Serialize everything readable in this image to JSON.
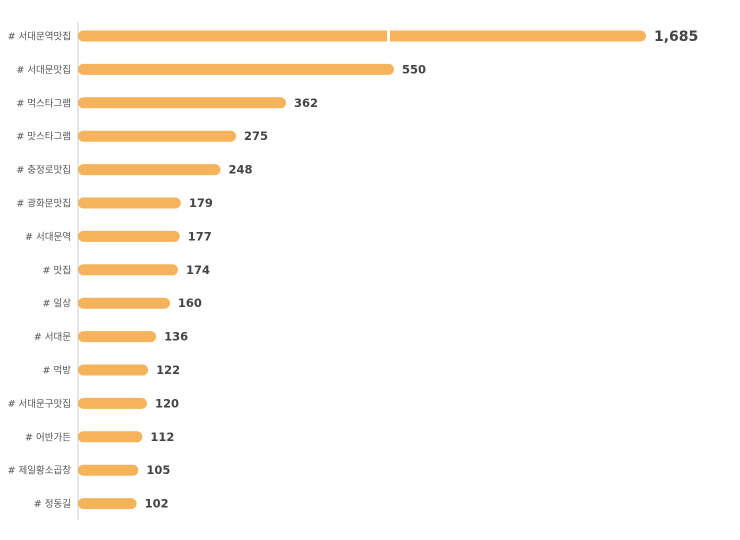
{
  "chart_data": {
    "type": "bar",
    "orientation": "horizontal",
    "title": "",
    "xlabel": "",
    "ylabel": "",
    "bar_color": "#F5B35C",
    "axis_break": true,
    "categories": [
      "# 서대문역맛집",
      "# 서대문맛집",
      "# 먹스타그램",
      "# 맛스타그램",
      "# 충정로맛집",
      "# 광화문맛집",
      "# 서대문역",
      "# 맛집",
      "# 일상",
      "# 서대문",
      "# 먹방",
      "# 서대문구맛집",
      "# 어반가든",
      "# 제일황소곱창",
      "# 정동길"
    ],
    "values": [
      1685,
      550,
      362,
      275,
      248,
      179,
      177,
      174,
      160,
      136,
      122,
      120,
      112,
      105,
      102
    ],
    "value_labels": [
      "1,685",
      "550",
      "362",
      "275",
      "248",
      "179",
      "177",
      "174",
      "160",
      "136",
      "122",
      "120",
      "112",
      "105",
      "102"
    ]
  }
}
